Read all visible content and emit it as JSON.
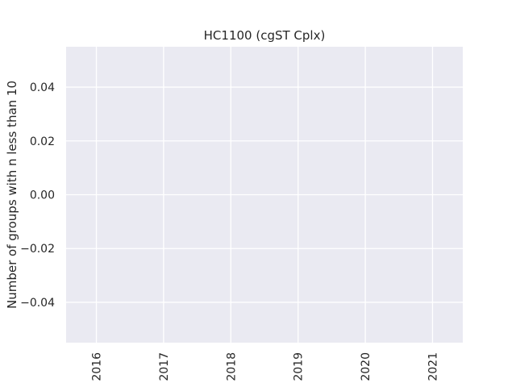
{
  "chart_data": {
    "type": "line",
    "title": "HC1100 (cgST Cplx)",
    "xlabel": "",
    "ylabel": "Number of groups with n less than 10",
    "x_ticks": [
      "2016",
      "2017",
      "2018",
      "2019",
      "2020",
      "2021"
    ],
    "y_ticks": [
      "0.04",
      "0.02",
      "0.00",
      "−0.02",
      "−0.04"
    ],
    "y_tick_values": [
      0.04,
      0.02,
      0.0,
      -0.02,
      -0.04
    ],
    "ylim": [
      -0.055,
      0.055
    ],
    "xlim": [
      2015.55,
      2021.45
    ],
    "series": [],
    "grid": true,
    "colors": {
      "plot_background": "#eaeaf2",
      "grid": "#ffffff",
      "text": "#262626"
    }
  }
}
